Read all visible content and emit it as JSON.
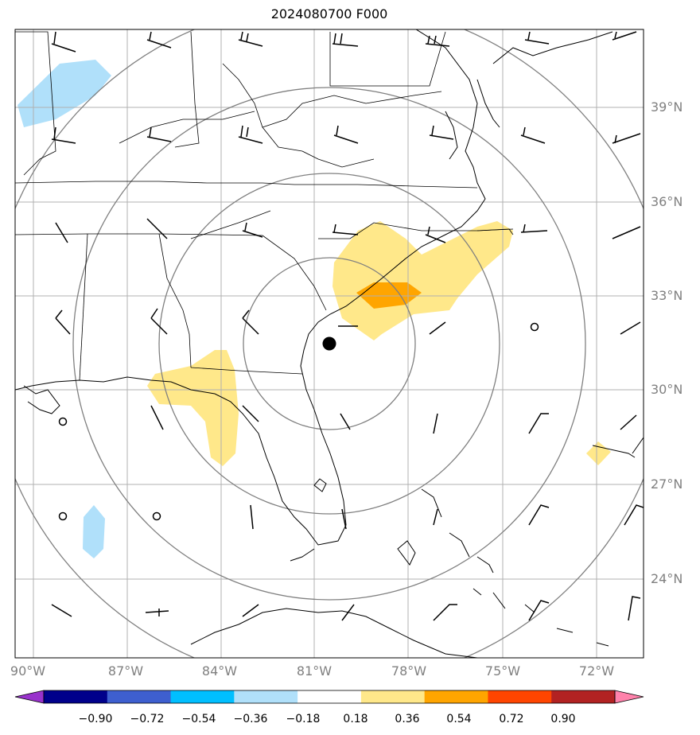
{
  "title": "2024080700 F000",
  "lon_labels": [
    "90°W",
    "87°W",
    "84°W",
    "81°W",
    "78°W",
    "75°W",
    "72°W"
  ],
  "lat_labels": [
    "39°N",
    "36°N",
    "33°N",
    "30°N",
    "27°N",
    "24°N"
  ],
  "colorbar": {
    "ticks": [
      "−0.90",
      "−0.72",
      "−0.54",
      "−0.36",
      "−0.18",
      "0.18",
      "0.36",
      "0.54",
      "0.72",
      "0.90"
    ],
    "colors": [
      "#9932cc",
      "#00008b",
      "#3e5fcf",
      "#00bfff",
      "#b0e0fa",
      "#ffffff",
      "#ffe88a",
      "#ffa500",
      "#ff4500",
      "#b22222",
      "#ff82ab"
    ]
  },
  "colors": {
    "grid": "#b0b0b0",
    "range_rings": "#808080",
    "coast": "#000000",
    "light_blue": "#b0e0fa",
    "light_yellow": "#ffe88a",
    "orange": "#ffa500"
  },
  "center_marker": "storm-center-dot"
}
